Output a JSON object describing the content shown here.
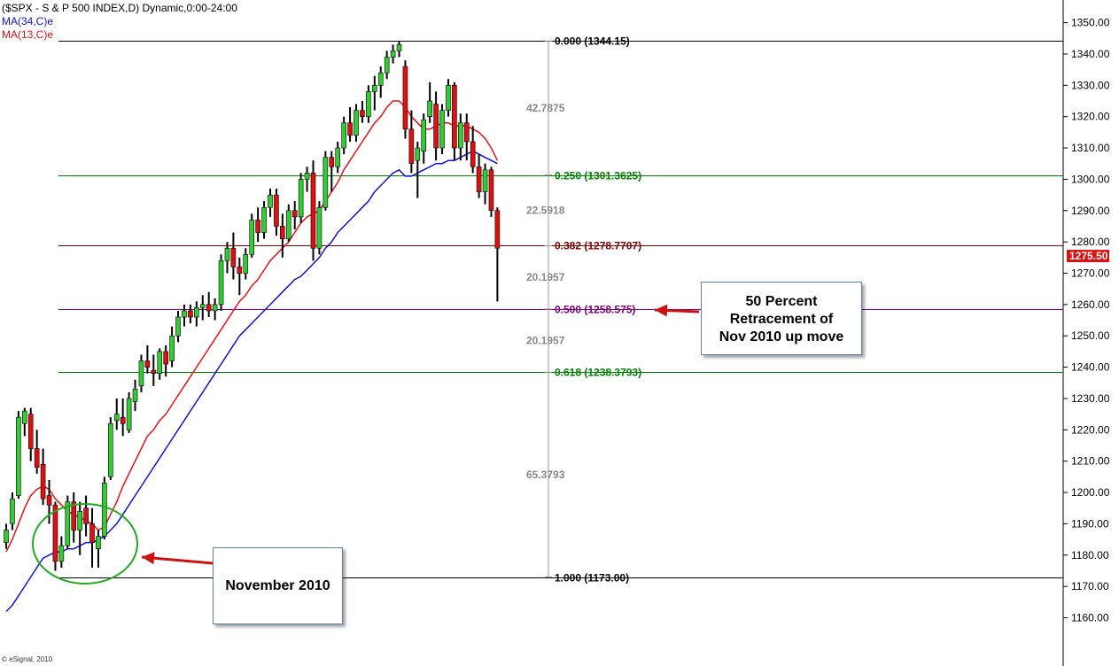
{
  "header": {
    "title": "($SPX - S & P 500 INDEX,D) Dynamic,0:00-24:00",
    "ma34_label": "MA(34,C)e",
    "ma13_label": "MA(13,C)e"
  },
  "footer": {
    "credit": "© eSignal, 2010"
  },
  "callouts": {
    "retracement": {
      "line1": "50 Percent",
      "line2": "Retracement of",
      "line3": "Nov 2010 up move"
    },
    "november": {
      "text": "November 2010"
    }
  },
  "colors": {
    "up_candle": "#33cc33",
    "down_candle": "#dd1111",
    "wick": "#000000",
    "ma13": "#ee1111",
    "ma34": "#1111dd",
    "price_tag_bg": "#dd1111",
    "fib_0": "#000000",
    "fib_250": "#008000",
    "fib_382": "#800000",
    "fib_500": "#800080",
    "fib_618": "#008000",
    "fib_1000": "#000000",
    "arrow": "#cc1111",
    "circle": "#22aa22"
  },
  "chart_data": {
    "type": "candlestick",
    "title": "($SPX - S & P 500 INDEX,D) Dynamic,0:00-24:00",
    "ylim": [
      1150,
      1355
    ],
    "y_ticks": [
      1160,
      1170,
      1180,
      1190,
      1200,
      1210,
      1220,
      1230,
      1240,
      1250,
      1260,
      1270,
      1280,
      1290,
      1300,
      1310,
      1320,
      1330,
      1340,
      1350
    ],
    "last_price": "1275.50",
    "grid": false,
    "candles": [
      [
        1184,
        1190,
        1182,
        1188
      ],
      [
        1190,
        1200,
        1188,
        1198
      ],
      [
        1199,
        1226,
        1198,
        1224
      ],
      [
        1222,
        1227,
        1218,
        1226
      ],
      [
        1225,
        1227,
        1210,
        1214
      ],
      [
        1214,
        1220,
        1206,
        1208
      ],
      [
        1209,
        1214,
        1196,
        1198
      ],
      [
        1199,
        1204,
        1190,
        1196
      ],
      [
        1196,
        1197,
        1175,
        1178
      ],
      [
        1178,
        1186,
        1176,
        1183
      ],
      [
        1183,
        1199,
        1182,
        1197
      ],
      [
        1197,
        1200,
        1184,
        1188
      ],
      [
        1188,
        1197,
        1180,
        1194
      ],
      [
        1195,
        1199,
        1186,
        1190
      ],
      [
        1190,
        1195,
        1176,
        1184
      ],
      [
        1182,
        1188,
        1176,
        1186
      ],
      [
        1186,
        1205,
        1185,
        1203
      ],
      [
        1205,
        1224,
        1204,
        1222
      ],
      [
        1223,
        1230,
        1220,
        1225
      ],
      [
        1224,
        1230,
        1218,
        1222
      ],
      [
        1220,
        1232,
        1219,
        1230
      ],
      [
        1229,
        1236,
        1226,
        1233
      ],
      [
        1234,
        1244,
        1232,
        1242
      ],
      [
        1242,
        1247,
        1238,
        1240
      ],
      [
        1239,
        1244,
        1234,
        1238
      ],
      [
        1238,
        1246,
        1236,
        1245
      ],
      [
        1245,
        1247,
        1237,
        1241
      ],
      [
        1242,
        1253,
        1240,
        1250
      ],
      [
        1250,
        1258,
        1248,
        1256
      ],
      [
        1256,
        1260,
        1253,
        1258
      ],
      [
        1258,
        1260,
        1254,
        1256
      ],
      [
        1256,
        1261,
        1253,
        1259
      ],
      [
        1259,
        1263,
        1255,
        1260
      ],
      [
        1260,
        1264,
        1256,
        1258
      ],
      [
        1258,
        1262,
        1255,
        1260
      ],
      [
        1260,
        1276,
        1258,
        1274
      ],
      [
        1274,
        1280,
        1270,
        1278
      ],
      [
        1278,
        1283,
        1268,
        1272
      ],
      [
        1272,
        1275,
        1263,
        1270
      ],
      [
        1270,
        1278,
        1268,
        1276
      ],
      [
        1276,
        1289,
        1275,
        1287
      ],
      [
        1287,
        1291,
        1280,
        1283
      ],
      [
        1283,
        1293,
        1281,
        1291
      ],
      [
        1291,
        1297,
        1288,
        1295
      ],
      [
        1295,
        1297,
        1282,
        1285
      ],
      [
        1285,
        1289,
        1275,
        1281
      ],
      [
        1281,
        1292,
        1280,
        1290
      ],
      [
        1290,
        1293,
        1284,
        1288
      ],
      [
        1288,
        1302,
        1286,
        1300
      ],
      [
        1300,
        1304,
        1296,
        1302
      ],
      [
        1302,
        1306,
        1274,
        1278
      ],
      [
        1278,
        1293,
        1276,
        1291
      ],
      [
        1291,
        1309,
        1290,
        1307
      ],
      [
        1307,
        1309,
        1296,
        1304
      ],
      [
        1304,
        1312,
        1302,
        1310
      ],
      [
        1310,
        1320,
        1308,
        1318
      ],
      [
        1318,
        1323,
        1312,
        1314
      ],
      [
        1314,
        1324,
        1312,
        1322
      ],
      [
        1322,
        1325,
        1318,
        1320
      ],
      [
        1320,
        1330,
        1318,
        1328
      ],
      [
        1328,
        1333,
        1322,
        1330
      ],
      [
        1330,
        1336,
        1326,
        1334
      ],
      [
        1334,
        1341,
        1332,
        1339
      ],
      [
        1339,
        1343,
        1337,
        1341
      ],
      [
        1341,
        1344,
        1339,
        1343
      ],
      [
        1336,
        1338,
        1313,
        1316
      ],
      [
        1316,
        1322,
        1302,
        1305
      ],
      [
        1306,
        1312,
        1294,
        1310
      ],
      [
        1309,
        1321,
        1305,
        1319
      ],
      [
        1320,
        1331,
        1318,
        1325
      ],
      [
        1324,
        1328,
        1306,
        1310
      ],
      [
        1310,
        1324,
        1308,
        1322
      ],
      [
        1322,
        1332,
        1320,
        1330
      ],
      [
        1330,
        1331,
        1306,
        1310
      ],
      [
        1310,
        1321,
        1306,
        1318
      ],
      [
        1318,
        1321,
        1306,
        1312
      ],
      [
        1312,
        1317,
        1302,
        1304
      ],
      [
        1304,
        1308,
        1294,
        1296
      ],
      [
        1296,
        1305,
        1292,
        1303
      ],
      [
        1303,
        1304,
        1288,
        1290
      ],
      [
        1290,
        1291,
        1261,
        1278
      ]
    ],
    "ma34": [
      1162,
      1164,
      1167,
      1170,
      1173,
      1176,
      1179,
      1180,
      1181,
      1181,
      1182,
      1182,
      1183,
      1184,
      1184,
      1185,
      1186,
      1188,
      1190,
      1193,
      1196,
      1199,
      1202,
      1205,
      1208,
      1211,
      1214,
      1217,
      1220,
      1223,
      1226,
      1229,
      1232,
      1235,
      1238,
      1241,
      1244,
      1247,
      1250,
      1252,
      1254,
      1256,
      1258,
      1260,
      1262,
      1264,
      1266,
      1268,
      1269,
      1271,
      1273,
      1275,
      1278,
      1280,
      1283,
      1285,
      1287,
      1289,
      1291,
      1293,
      1296,
      1298,
      1300,
      1302,
      1303,
      1301,
      1301,
      1302,
      1303,
      1304,
      1305,
      1305,
      1306,
      1306,
      1307,
      1308,
      1309,
      1308,
      1307,
      1306,
      1305
    ],
    "ma13": [
      1181,
      1185,
      1190,
      1195,
      1199,
      1201,
      1202,
      1201,
      1198,
      1196,
      1194,
      1193,
      1192,
      1191,
      1190,
      1188,
      1189,
      1193,
      1197,
      1202,
      1206,
      1210,
      1214,
      1218,
      1220,
      1223,
      1225,
      1228,
      1231,
      1234,
      1237,
      1240,
      1243,
      1246,
      1249,
      1252,
      1255,
      1258,
      1261,
      1263,
      1266,
      1268,
      1271,
      1274,
      1276,
      1278,
      1280,
      1283,
      1286,
      1288,
      1289,
      1290,
      1293,
      1296,
      1299,
      1303,
      1306,
      1309,
      1312,
      1315,
      1318,
      1320,
      1323,
      1325,
      1325,
      1323,
      1320,
      1318,
      1316,
      1316,
      1317,
      1318,
      1318,
      1317,
      1317,
      1317,
      1316,
      1315,
      1313,
      1310,
      1306
    ],
    "fib_levels": [
      {
        "value": 1344.15,
        "label": "0.000 (1344.15)"
      },
      {
        "value": 1301.3625,
        "label": "0.250 (1301.3625)"
      },
      {
        "value": 1278.7707,
        "label": "0.382 (1278.7707)"
      },
      {
        "value": 1258.575,
        "label": "0.500 (1258.575)"
      },
      {
        "value": 1238.3793,
        "label": "0.618 (1238.3793)"
      },
      {
        "value": 1173.0,
        "label": "1.000 (1173.00)"
      }
    ],
    "fib_gaps": [
      {
        "value": 1322.75,
        "label": "42.7875"
      },
      {
        "value": 1290.07,
        "label": "22.5918"
      },
      {
        "value": 1268.67,
        "label": "20.1957"
      },
      {
        "value": 1248.48,
        "label": "20.1957"
      },
      {
        "value": 1205.69,
        "label": "65.3793"
      }
    ]
  }
}
